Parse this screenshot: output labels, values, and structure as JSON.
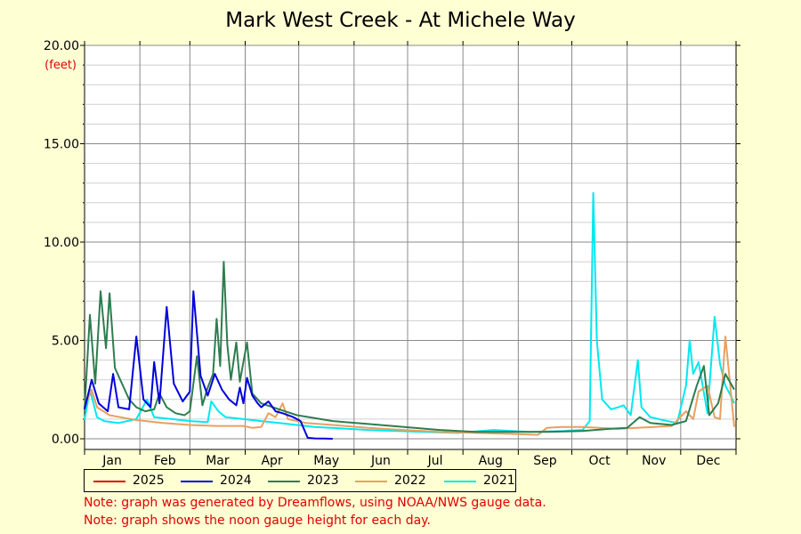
{
  "chart_data": {
    "type": "line",
    "title": "Mark West Creek - At Michele Way",
    "ylabel": "(feet)",
    "ylim": [
      0,
      20
    ],
    "y_ticks": [
      "0.00",
      "5.00",
      "10.00",
      "15.00",
      "20.00"
    ],
    "x_ticks": [
      "Jan",
      "Feb",
      "Mar",
      "Apr",
      "May",
      "Jun",
      "Jul",
      "Aug",
      "Sep",
      "Oct",
      "Nov",
      "Dec"
    ],
    "grid": true,
    "legend_placement": "bottom",
    "series": [
      {
        "name": "2025",
        "color": "#e00000",
        "points": []
      },
      {
        "name": "2024",
        "color": "#0000dd",
        "points": [
          [
            1,
            1.5
          ],
          [
            5,
            3.0
          ],
          [
            9,
            1.8
          ],
          [
            14,
            1.4
          ],
          [
            17,
            3.3
          ],
          [
            20,
            1.6
          ],
          [
            26,
            1.5
          ],
          [
            30,
            5.2
          ],
          [
            34,
            2.0
          ],
          [
            38,
            1.6
          ],
          [
            40,
            3.9
          ],
          [
            43,
            1.8
          ],
          [
            47,
            6.7
          ],
          [
            51,
            2.8
          ],
          [
            56,
            1.9
          ],
          [
            60,
            2.4
          ],
          [
            62,
            7.5
          ],
          [
            66,
            3.2
          ],
          [
            70,
            2.2
          ],
          [
            74,
            3.3
          ],
          [
            78,
            2.5
          ],
          [
            82,
            2.0
          ],
          [
            86,
            1.7
          ],
          [
            88,
            2.6
          ],
          [
            90,
            1.8
          ],
          [
            92,
            3.1
          ],
          [
            95,
            2.2
          ],
          [
            98,
            1.8
          ],
          [
            100,
            1.6
          ],
          [
            104,
            1.9
          ],
          [
            108,
            1.4
          ],
          [
            112,
            1.3
          ],
          [
            118,
            1.1
          ],
          [
            122,
            0.9
          ],
          [
            126,
            0.05
          ],
          [
            130,
            0.02
          ],
          [
            135,
            0.01
          ],
          [
            140,
            0.0
          ]
        ]
      },
      {
        "name": "2023",
        "color": "#2e7d4f",
        "points": [
          [
            1,
            1.5
          ],
          [
            4,
            6.3
          ],
          [
            7,
            2.8
          ],
          [
            10,
            7.5
          ],
          [
            13,
            4.6
          ],
          [
            15,
            7.4
          ],
          [
            18,
            3.6
          ],
          [
            22,
            2.8
          ],
          [
            26,
            2.0
          ],
          [
            30,
            1.6
          ],
          [
            35,
            1.4
          ],
          [
            40,
            1.5
          ],
          [
            43,
            2.3
          ],
          [
            47,
            1.6
          ],
          [
            52,
            1.3
          ],
          [
            57,
            1.2
          ],
          [
            60,
            1.4
          ],
          [
            64,
            4.2
          ],
          [
            67,
            1.7
          ],
          [
            70,
            2.6
          ],
          [
            73,
            3.3
          ],
          [
            75,
            6.1
          ],
          [
            77,
            3.7
          ],
          [
            79,
            9.0
          ],
          [
            81,
            4.8
          ],
          [
            83,
            3.0
          ],
          [
            86,
            4.9
          ],
          [
            88,
            2.9
          ],
          [
            92,
            4.9
          ],
          [
            95,
            2.3
          ],
          [
            100,
            1.8
          ],
          [
            110,
            1.5
          ],
          [
            120,
            1.2
          ],
          [
            140,
            0.9
          ],
          [
            160,
            0.75
          ],
          [
            180,
            0.6
          ],
          [
            200,
            0.45
          ],
          [
            220,
            0.35
          ],
          [
            240,
            0.35
          ],
          [
            260,
            0.35
          ],
          [
            280,
            0.4
          ],
          [
            295,
            0.5
          ],
          [
            305,
            0.55
          ],
          [
            312,
            1.1
          ],
          [
            318,
            0.8
          ],
          [
            330,
            0.7
          ],
          [
            338,
            0.9
          ],
          [
            344,
            2.7
          ],
          [
            348,
            3.7
          ],
          [
            351,
            1.2
          ],
          [
            356,
            1.8
          ],
          [
            360,
            3.3
          ],
          [
            365,
            2.5
          ]
        ]
      },
      {
        "name": "2022",
        "color": "#e8a060",
        "points": [
          [
            1,
            1.6
          ],
          [
            5,
            2.5
          ],
          [
            8,
            1.6
          ],
          [
            15,
            1.2
          ],
          [
            30,
            0.95
          ],
          [
            45,
            0.8
          ],
          [
            60,
            0.7
          ],
          [
            75,
            0.65
          ],
          [
            90,
            0.65
          ],
          [
            95,
            0.55
          ],
          [
            100,
            0.6
          ],
          [
            104,
            1.3
          ],
          [
            108,
            1.1
          ],
          [
            112,
            1.8
          ],
          [
            115,
            1.0
          ],
          [
            125,
            0.8
          ],
          [
            140,
            0.7
          ],
          [
            160,
            0.55
          ],
          [
            180,
            0.45
          ],
          [
            200,
            0.35
          ],
          [
            220,
            0.3
          ],
          [
            240,
            0.25
          ],
          [
            255,
            0.2
          ],
          [
            260,
            0.55
          ],
          [
            268,
            0.6
          ],
          [
            280,
            0.6
          ],
          [
            300,
            0.5
          ],
          [
            310,
            0.55
          ],
          [
            320,
            0.6
          ],
          [
            330,
            0.65
          ],
          [
            338,
            1.4
          ],
          [
            342,
            1.0
          ],
          [
            345,
            2.4
          ],
          [
            350,
            2.7
          ],
          [
            354,
            1.1
          ],
          [
            357,
            1.0
          ],
          [
            360,
            5.2
          ],
          [
            362,
            3.4
          ],
          [
            365,
            0.6
          ]
        ]
      },
      {
        "name": "2021",
        "color": "#00e8f0",
        "points": [
          [
            1,
            0.95
          ],
          [
            4,
            2.5
          ],
          [
            8,
            1.1
          ],
          [
            12,
            0.9
          ],
          [
            20,
            0.8
          ],
          [
            30,
            1.0
          ],
          [
            36,
            2.0
          ],
          [
            40,
            1.1
          ],
          [
            50,
            1.0
          ],
          [
            60,
            0.9
          ],
          [
            70,
            0.85
          ],
          [
            72,
            1.9
          ],
          [
            76,
            1.4
          ],
          [
            80,
            1.1
          ],
          [
            90,
            1.0
          ],
          [
            100,
            0.9
          ],
          [
            110,
            0.8
          ],
          [
            130,
            0.6
          ],
          [
            160,
            0.45
          ],
          [
            190,
            0.35
          ],
          [
            210,
            0.3
          ],
          [
            230,
            0.45
          ],
          [
            250,
            0.35
          ],
          [
            270,
            0.4
          ],
          [
            280,
            0.45
          ],
          [
            284,
            0.9
          ],
          [
            286,
            12.5
          ],
          [
            288,
            5.0
          ],
          [
            291,
            2.0
          ],
          [
            296,
            1.5
          ],
          [
            300,
            1.6
          ],
          [
            303,
            1.7
          ],
          [
            307,
            1.2
          ],
          [
            311,
            4.0
          ],
          [
            313,
            1.6
          ],
          [
            318,
            1.1
          ],
          [
            325,
            0.95
          ],
          [
            333,
            0.8
          ],
          [
            338,
            2.7
          ],
          [
            340,
            5.0
          ],
          [
            342,
            3.3
          ],
          [
            345,
            3.9
          ],
          [
            350,
            1.3
          ],
          [
            354,
            6.2
          ],
          [
            357,
            3.8
          ],
          [
            360,
            2.7
          ],
          [
            363,
            2.2
          ],
          [
            365,
            1.8
          ]
        ]
      }
    ]
  },
  "notes": [
    "Note: graph was generated by Dreamflows, using NOAA/NWS gauge data.",
    "Note: graph shows the noon gauge height for each day."
  ]
}
